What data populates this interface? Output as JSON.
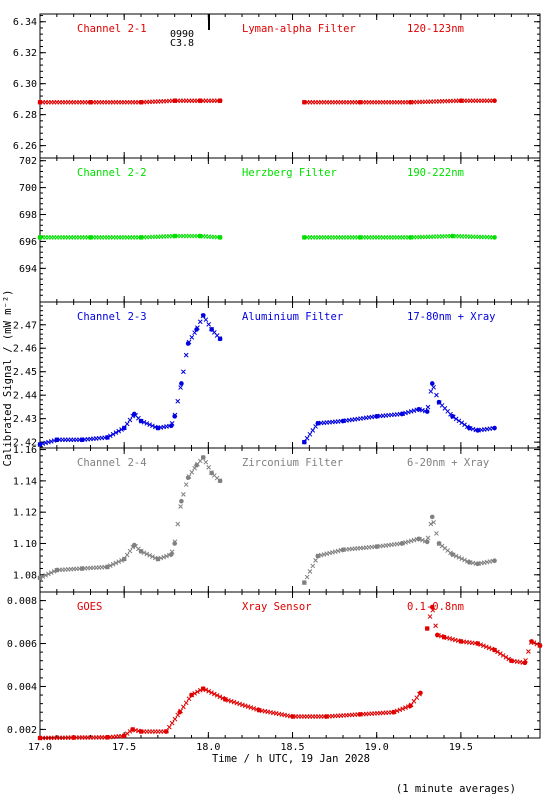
{
  "figure": {
    "ylabel": "Calibrated Signal / (mW m⁻²)",
    "xlabel": "Time / h UTC, 19 Jan 2028",
    "footnote": "(1 minute averages)",
    "marker_text_top": "0990",
    "marker_text_bottom": "C3.8",
    "xlim": [
      17.0,
      19.97
    ],
    "xticks": [
      "17.0",
      "17.5",
      "18.0",
      "18.5",
      "19.0",
      "19.5"
    ]
  },
  "chart_data": [
    {
      "type": "scatter",
      "channel": "Channel 2-1",
      "filter": "Lyman-alpha Filter",
      "band": "120-123nm",
      "color": "#e00000",
      "ylim": [
        6.252,
        6.345
      ],
      "yticks": [
        "6.26",
        "6.28",
        "6.30",
        "6.32",
        "6.34"
      ],
      "series": [
        {
          "x": [
            17.0,
            17.3,
            17.6,
            17.8,
            17.95,
            18.07
          ],
          "y": [
            6.288,
            6.288,
            6.288,
            6.289,
            6.289,
            6.289
          ]
        },
        {
          "x": [
            18.57,
            18.9,
            19.2,
            19.5,
            19.7
          ],
          "y": [
            6.288,
            6.288,
            6.288,
            6.289,
            6.289
          ]
        }
      ]
    },
    {
      "type": "scatter",
      "channel": "Channel 2-2",
      "filter": "Herzberg Filter",
      "band": "190-222nm",
      "color": "#00e000",
      "ylim": [
        691.5,
        702.2
      ],
      "yticks": [
        "694",
        "696",
        "698",
        "700",
        "702"
      ],
      "series": [
        {
          "x": [
            17.0,
            17.3,
            17.6,
            17.8,
            17.95,
            18.07
          ],
          "y": [
            696.3,
            696.3,
            696.3,
            696.4,
            696.4,
            696.3
          ]
        },
        {
          "x": [
            18.57,
            18.9,
            19.2,
            19.45,
            19.7
          ],
          "y": [
            696.3,
            696.3,
            696.3,
            696.4,
            696.3
          ]
        }
      ]
    },
    {
      "type": "scatter",
      "channel": "Channel 2-3",
      "filter": "Aluminium Filter",
      "band": "17-80nm + Xray",
      "color": "#0000e0",
      "ylim": [
        2.4175,
        2.4797
      ],
      "yticks": [
        "2.42",
        "2.43",
        "2.44",
        "2.45",
        "2.46",
        "2.47"
      ],
      "series": [
        {
          "x": [
            17.0,
            17.1,
            17.25,
            17.4,
            17.5,
            17.56,
            17.6,
            17.7,
            17.78,
            17.8,
            17.84,
            17.88,
            17.93,
            17.97,
            18.02,
            18.07
          ],
          "y": [
            2.419,
            2.421,
            2.421,
            2.422,
            2.426,
            2.432,
            2.429,
            2.426,
            2.427,
            2.431,
            2.445,
            2.462,
            2.468,
            2.474,
            2.468,
            2.464
          ]
        },
        {
          "x": [
            18.57,
            18.65,
            18.8,
            19.0,
            19.15,
            19.25,
            19.3,
            19.33,
            19.37,
            19.45,
            19.55,
            19.6,
            19.7
          ],
          "y": [
            2.42,
            2.428,
            2.429,
            2.431,
            2.432,
            2.434,
            2.433,
            2.445,
            2.437,
            2.431,
            2.426,
            2.425,
            2.426
          ]
        }
      ]
    },
    {
      "type": "scatter",
      "channel": "Channel 2-4",
      "filter": "Zirconium Filter",
      "band": "6-20nm + Xray",
      "color": "#808080",
      "ylim": [
        1.069,
        1.161
      ],
      "yticks": [
        "1.08",
        "1.10",
        "1.12",
        "1.14",
        "1.16"
      ],
      "series": [
        {
          "x": [
            17.0,
            17.1,
            17.25,
            17.4,
            17.5,
            17.56,
            17.6,
            17.7,
            17.78,
            17.8,
            17.84,
            17.88,
            17.93,
            17.97,
            18.02,
            18.07
          ],
          "y": [
            1.078,
            1.083,
            1.084,
            1.085,
            1.09,
            1.099,
            1.095,
            1.09,
            1.093,
            1.1,
            1.127,
            1.142,
            1.15,
            1.155,
            1.145,
            1.14
          ]
        },
        {
          "x": [
            18.57,
            18.65,
            18.8,
            19.0,
            19.15,
            19.25,
            19.3,
            19.33,
            19.37,
            19.45,
            19.55,
            19.6,
            19.7
          ],
          "y": [
            1.075,
            1.092,
            1.096,
            1.098,
            1.1,
            1.103,
            1.101,
            1.117,
            1.1,
            1.093,
            1.088,
            1.087,
            1.089
          ]
        }
      ]
    },
    {
      "type": "scatter",
      "channel": "GOES",
      "filter": "Xray Sensor",
      "band": "0.1-0.8nm",
      "color": "#e00000",
      "ylim": [
        0.0016,
        0.0084
      ],
      "yticks": [
        "0.002",
        "0.004",
        "0.006",
        "0.008"
      ],
      "series": [
        {
          "x": [
            17.0,
            17.2,
            17.4,
            17.5,
            17.55,
            17.6,
            17.75,
            17.83,
            17.9,
            17.97,
            18.1,
            18.3,
            18.5,
            18.7,
            18.9,
            19.1,
            19.2,
            19.26
          ],
          "y": [
            0.0016,
            0.00162,
            0.00163,
            0.0017,
            0.002,
            0.0019,
            0.0019,
            0.0028,
            0.0036,
            0.0039,
            0.0034,
            0.0029,
            0.0026,
            0.0026,
            0.0027,
            0.0028,
            0.0031,
            0.0037
          ]
        },
        {
          "x": [
            19.3,
            19.33,
            19.36,
            19.4,
            19.5,
            19.6,
            19.7,
            19.8,
            19.88,
            19.92,
            19.97
          ],
          "y": [
            0.0067,
            0.0077,
            0.0064,
            0.0063,
            0.0061,
            0.006,
            0.0057,
            0.0052,
            0.0051,
            0.0061,
            0.0059
          ]
        }
      ]
    }
  ]
}
